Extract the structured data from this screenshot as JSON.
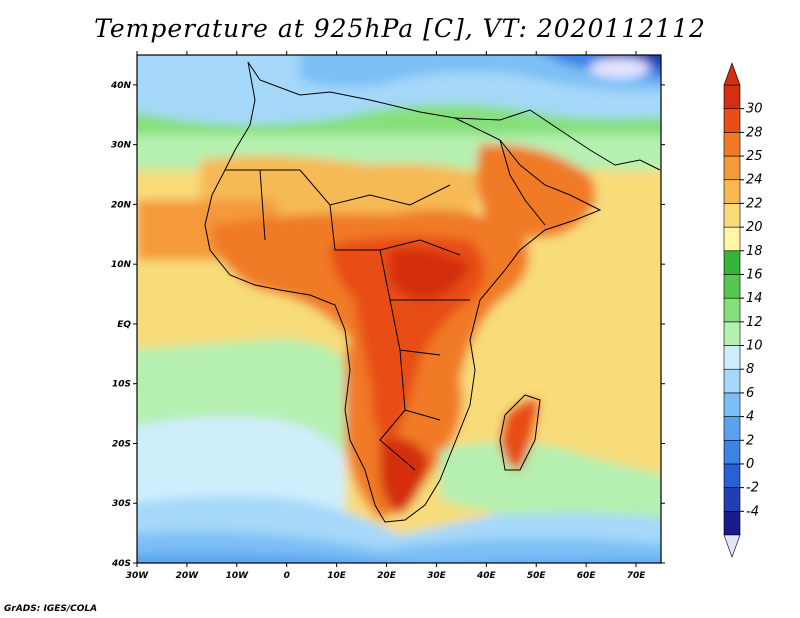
{
  "map": {
    "title": "Temperature at 925hPa [C], VT: 2020112112",
    "variable": "Temperature at 925hPa",
    "units": "C",
    "valid_time": "2020112112",
    "lon_range": [
      -30,
      75
    ],
    "lat_range": [
      -40,
      45
    ],
    "lon_ticks": [
      "30W",
      "20W",
      "10W",
      "0",
      "10E",
      "20E",
      "30E",
      "40E",
      "50E",
      "60E",
      "70E"
    ],
    "lat_ticks": [
      "40S",
      "30S",
      "20S",
      "10S",
      "EQ",
      "10N",
      "20N",
      "30N",
      "40N"
    ],
    "credit": "GrADS: IGES/COLA"
  },
  "colorbar": {
    "levels": [
      "-4",
      "-2",
      "0",
      "2",
      "4",
      "6",
      "8",
      "10",
      "12",
      "14",
      "16",
      "18",
      "20",
      "22",
      "24",
      "25",
      "28",
      "30"
    ],
    "colors": [
      "#1a1a8c",
      "#1f3fb3",
      "#2a60d4",
      "#3e82e6",
      "#5aa2f0",
      "#7cbff5",
      "#a5d8f9",
      "#cfeefc",
      "#b5f0b0",
      "#86e07a",
      "#56c850",
      "#36b53a",
      "#fff6a8",
      "#f8dc7a",
      "#f6b955",
      "#f49a3a",
      "#f07a26",
      "#e84e18",
      "#d42f10"
    ],
    "under_color": "#e4e4ff",
    "over_color": "#d42f10"
  }
}
